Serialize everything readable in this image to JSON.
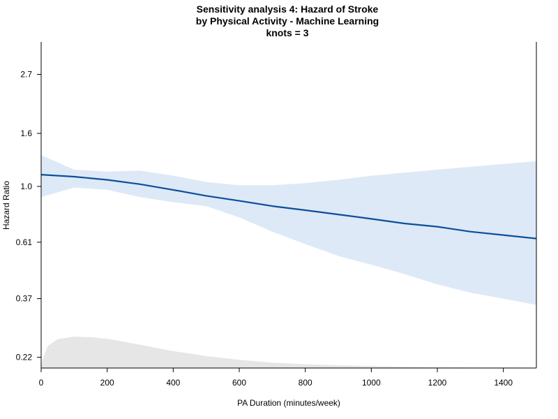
{
  "chart_data": {
    "type": "line",
    "title": [
      "Sensitivity analysis 4: Hazard of Stroke",
      "by Physical Activity - Machine Learning",
      "knots = 3"
    ],
    "xlabel": "PA Duration (minutes/week)",
    "ylabel": "Hazard Ratio",
    "y_scale": "log",
    "xlim": [
      0,
      1500
    ],
    "ylim": [
      0.2,
      3.6
    ],
    "x_ticks": [
      0,
      200,
      400,
      600,
      800,
      1000,
      1200,
      1400
    ],
    "x_tick_labels": [
      "0",
      "200",
      "400",
      "600",
      "800",
      "1000",
      "1200",
      "1400"
    ],
    "y_ticks": [
      0.22,
      0.37,
      0.61,
      1.0,
      1.6,
      2.7
    ],
    "y_tick_labels": [
      "0.22",
      "0.37",
      "0.61",
      "1.0",
      "1.6",
      "2.7"
    ],
    "series": [
      {
        "kind": "line",
        "color": "#0b4f9c",
        "x": [
          0,
          100,
          200,
          300,
          400,
          500,
          600,
          700,
          800,
          900,
          1000,
          1100,
          1200,
          1300,
          1400,
          1500
        ],
        "y": [
          1.11,
          1.09,
          1.06,
          1.02,
          0.97,
          0.92,
          0.88,
          0.84,
          0.81,
          0.78,
          0.75,
          0.72,
          0.7,
          0.67,
          0.65,
          0.63
        ]
      },
      {
        "kind": "confidence_band",
        "color": "#dde9f6",
        "x": [
          0,
          100,
          200,
          300,
          400,
          500,
          600,
          700,
          800,
          900,
          1000,
          1100,
          1200,
          1300,
          1400,
          1500
        ],
        "upper": [
          1.32,
          1.16,
          1.14,
          1.15,
          1.1,
          1.04,
          1.01,
          1.01,
          1.03,
          1.06,
          1.1,
          1.13,
          1.16,
          1.19,
          1.22,
          1.25
        ],
        "lower": [
          0.91,
          0.99,
          0.97,
          0.91,
          0.87,
          0.84,
          0.76,
          0.67,
          0.6,
          0.54,
          0.5,
          0.46,
          0.42,
          0.39,
          0.37,
          0.35
        ]
      },
      {
        "kind": "density",
        "color": "#e6e6e6",
        "x": [
          0,
          5,
          20,
          50,
          100,
          150,
          200,
          250,
          300,
          350,
          400,
          500,
          600,
          700,
          800,
          900,
          1000,
          1100,
          1200,
          1300,
          1400,
          1500
        ],
        "relative_height": [
          0.02,
          0.3,
          0.7,
          0.92,
          1.0,
          0.98,
          0.93,
          0.84,
          0.74,
          0.64,
          0.54,
          0.38,
          0.26,
          0.17,
          0.12,
          0.09,
          0.06,
          0.04,
          0.03,
          0.02,
          0.015,
          0.01
        ]
      }
    ],
    "grid": false
  }
}
